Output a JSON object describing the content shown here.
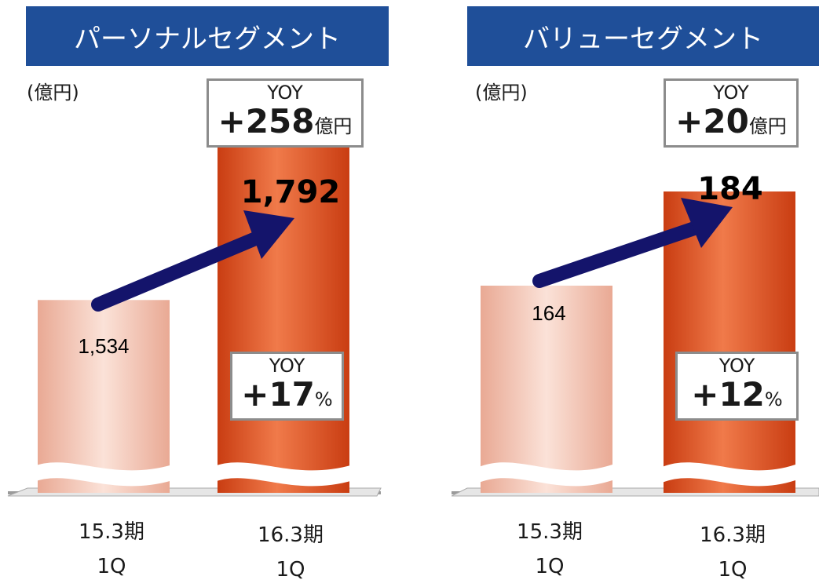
{
  "panels": [
    {
      "title": "パーソナルセグメント",
      "unit": "(億円)",
      "yoy_amount": {
        "label": "YOY",
        "value": "+258",
        "suffix": "億円"
      },
      "yoy_pct": {
        "label": "YOY",
        "value": "+17",
        "suffix": "%"
      },
      "value_labels": [
        "1,534",
        "1,792"
      ],
      "categories": [
        [
          "15.3期",
          "1Q"
        ],
        [
          "16.3期",
          "1Q"
        ]
      ]
    },
    {
      "title": "バリューセグメント",
      "unit": "(億円)",
      "yoy_amount": {
        "label": "YOY",
        "value": "+20",
        "suffix": "億円"
      },
      "yoy_pct": {
        "label": "YOY",
        "value": "+12",
        "suffix": "%"
      },
      "value_labels": [
        "164",
        "184"
      ],
      "categories": [
        [
          "15.3期",
          "1Q"
        ],
        [
          "16.3期",
          "1Q"
        ]
      ]
    }
  ],
  "chart_data": [
    {
      "type": "bar",
      "title": "パーソナルセグメント",
      "ylabel": "(億円)",
      "categories": [
        "15.3期 1Q",
        "16.3期 1Q"
      ],
      "values": [
        1534,
        1792
      ],
      "axis_break": true,
      "annotations": [
        "YOY +258億円",
        "YOY +17%"
      ]
    },
    {
      "type": "bar",
      "title": "バリューセグメント",
      "ylabel": "(億円)",
      "categories": [
        "15.3期 1Q",
        "16.3期 1Q"
      ],
      "values": [
        164,
        184
      ],
      "axis_break": true,
      "annotations": [
        "YOY +20億円",
        "YOY +12%"
      ]
    }
  ],
  "colors": {
    "banner": "#1f4f99",
    "bar_previous": "#f3c6b6",
    "bar_current": "#e35a28",
    "arrow": "#14146b",
    "box_border": "#8c8c8c"
  }
}
